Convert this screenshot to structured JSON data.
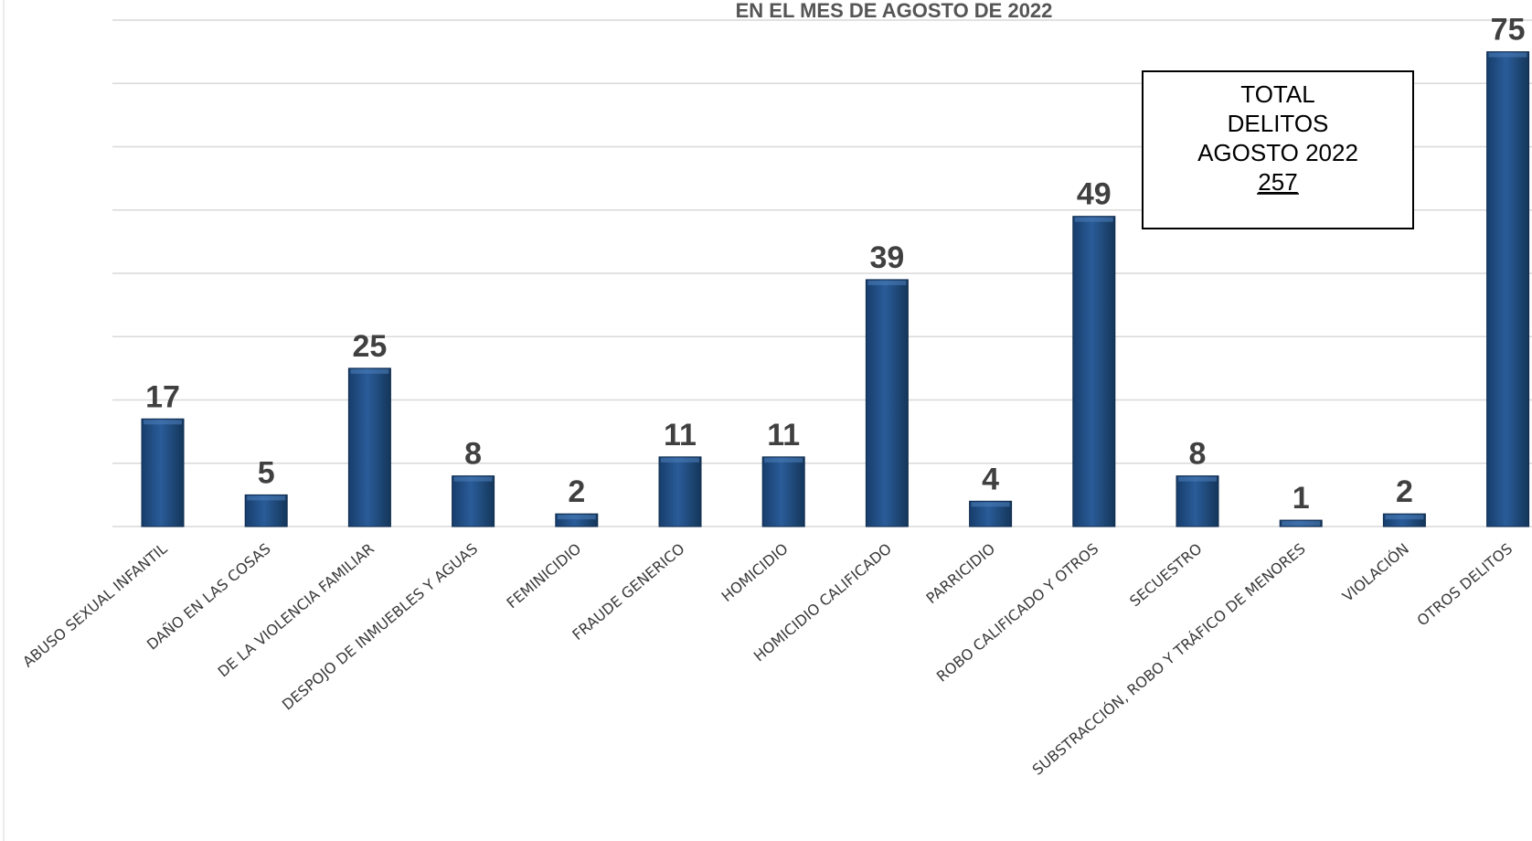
{
  "chart_data": {
    "type": "bar",
    "title": "EN EL MES DE AGOSTO DE 2022",
    "categories": [
      "ABUSO SEXUAL INFANTIL",
      "DAÑO EN LAS COSAS",
      "DE LA VIOLENCIA FAMILIAR",
      "DESPOJO DE INMUEBLES Y AGUAS",
      "FEMINICIDIO",
      "FRAUDE GENERICO",
      "HOMICIDIO",
      "HOMICIDIO CALIFICADO",
      "PARRICIDIO",
      "ROBO CALIFICADO Y OTROS",
      "SECUESTRO",
      "SUBSTRACCIÓN, ROBO Y TRÁFICO DE MENORES",
      "VIOLACIÓN",
      "OTROS DELITOS"
    ],
    "values": [
      17,
      5,
      25,
      8,
      2,
      11,
      11,
      39,
      4,
      49,
      8,
      1,
      2,
      75
    ],
    "data_labels": [
      "17",
      "5",
      "25",
      "8",
      "2",
      "11",
      "11",
      "39",
      "4",
      "49",
      "8",
      "1",
      "2",
      "75"
    ],
    "ylim": [
      0,
      80
    ],
    "grid": true,
    "bar_color": "#1f4e86",
    "xlabel": "",
    "ylabel": ""
  },
  "total_box": {
    "line1": "TOTAL",
    "line2": "DELITOS",
    "line3": "AGOSTO 2022",
    "total": "257"
  }
}
